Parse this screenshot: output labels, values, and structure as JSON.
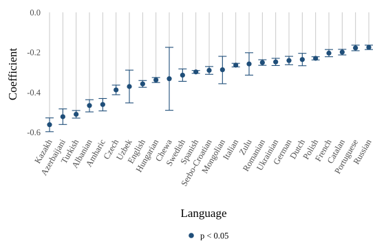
{
  "chart_data": {
    "type": "scatter",
    "subtype": "point-with-errorbars",
    "xlabel": "Language",
    "ylabel": "Coefficient",
    "ylim": [
      -0.62,
      0.0
    ],
    "yticks": [
      0.0,
      -0.2,
      -0.4,
      -0.6
    ],
    "ytick_labels": [
      "0.0",
      "-0.2",
      "-0.4",
      "-0.6"
    ],
    "grid": "vertical lines from 0 down to each point",
    "legend": {
      "placement": "bottom-center",
      "entries": [
        {
          "label": "p < 0.05",
          "color": "#1f4e79"
        }
      ]
    },
    "point_color": "#1f4e79",
    "categories": [
      "Kazakh",
      "Azerbaijani",
      "Turkish",
      "Albanian",
      "Amharic",
      "Czech",
      "Uzbek",
      "English",
      "Hungarian",
      "Chewa",
      "Swedish",
      "Spanish",
      "Serbo-Croatian",
      "Mongolian",
      "Italian",
      "Zulu",
      "Romanian",
      "Ukrainian",
      "German",
      "Dutch",
      "Polish",
      "French",
      "Catalan",
      "Portuguese",
      "Russian"
    ],
    "values": [
      -0.562,
      -0.522,
      -0.51,
      -0.466,
      -0.461,
      -0.388,
      -0.371,
      -0.358,
      -0.338,
      -0.332,
      -0.314,
      -0.298,
      -0.29,
      -0.287,
      -0.264,
      -0.258,
      -0.251,
      -0.248,
      -0.241,
      -0.236,
      -0.23,
      -0.204,
      -0.199,
      -0.178,
      -0.175
    ],
    "ci_low": [
      -0.597,
      -0.561,
      -0.529,
      -0.498,
      -0.493,
      -0.412,
      -0.453,
      -0.375,
      -0.351,
      -0.49,
      -0.345,
      -0.305,
      -0.31,
      -0.357,
      -0.273,
      -0.314,
      -0.265,
      -0.266,
      -0.262,
      -0.267,
      -0.238,
      -0.222,
      -0.213,
      -0.192,
      -0.186
    ],
    "ci_high": [
      -0.528,
      -0.483,
      -0.491,
      -0.437,
      -0.431,
      -0.364,
      -0.289,
      -0.341,
      -0.326,
      -0.175,
      -0.283,
      -0.291,
      -0.271,
      -0.22,
      -0.255,
      -0.202,
      -0.237,
      -0.23,
      -0.22,
      -0.205,
      -0.222,
      -0.186,
      -0.185,
      -0.164,
      -0.164
    ]
  }
}
